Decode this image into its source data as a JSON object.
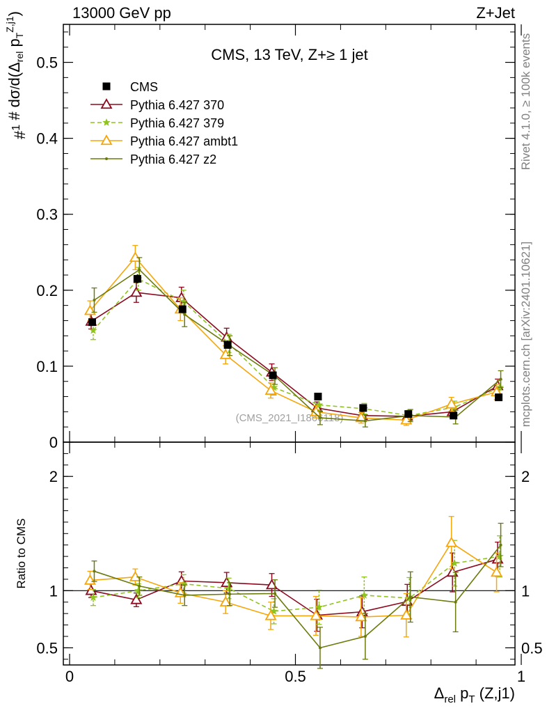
{
  "header": {
    "left": "13000 GeV pp",
    "right": "Z+Jet"
  },
  "side_labels": {
    "rivet": "Rivet 4.1.0, ≥ 100k events",
    "mcplots": "mcplots.cern.ch [arXiv:2401.10621]"
  },
  "watermark": "(CMS_2021_I1866118)",
  "chart_data": {
    "type": "line",
    "title": "CMS, 13 TeV, Z+≥ 1 jet",
    "ylabel_top": "#1/σ # dσ/d(Δrel pT(Z,j1))",
    "ylabel_bottom": "Ratio to CMS",
    "xlabel": "Δrel pT (Z,j1)",
    "xlim": [
      0,
      1
    ],
    "ylim_main": [
      0,
      0.55
    ],
    "ylim_ratio": [
      0.35,
      2.3
    ],
    "x_ticks": [
      "0",
      "0.5",
      "1"
    ],
    "y_ticks_main": [
      "0",
      "0.1",
      "0.2",
      "0.3",
      "0.4",
      "0.5"
    ],
    "y_ticks_ratio": [
      "0.5",
      "1",
      "2"
    ],
    "x": [
      0.05,
      0.15,
      0.25,
      0.35,
      0.45,
      0.55,
      0.65,
      0.75,
      0.85,
      0.95
    ],
    "cms": {
      "name": "CMS",
      "values": [
        0.158,
        0.215,
        0.175,
        0.128,
        0.088,
        0.06,
        0.045,
        0.037,
        0.035,
        0.059
      ],
      "errors": [
        0.005,
        0.006,
        0.005,
        0.004,
        0.003,
        0.002,
        0.002,
        0.002,
        0.002,
        0.003
      ]
    },
    "series": [
      {
        "name": "Pythia 6.427 370",
        "color": "#8b0a1f",
        "marker": "open-triangle",
        "dash": "",
        "values": [
          0.159,
          0.197,
          0.19,
          0.138,
          0.092,
          0.045,
          0.035,
          0.034,
          0.04,
          0.074
        ],
        "errors": [
          0.01,
          0.013,
          0.014,
          0.012,
          0.011,
          0.008,
          0.007,
          0.007,
          0.007,
          0.009
        ],
        "ratio": [
          1.0,
          0.92,
          1.085,
          1.07,
          1.05,
          0.785,
          0.815,
          0.905,
          1.16,
          1.275
        ],
        "ratio_err": [
          0.06,
          0.06,
          0.08,
          0.09,
          0.1,
          0.14,
          0.14,
          0.15,
          0.17,
          0.15
        ]
      },
      {
        "name": "Pythia 6.427 379",
        "color": "#8fc31f",
        "marker": "star",
        "dash": "6,4",
        "values": [
          0.147,
          0.215,
          0.185,
          0.13,
          0.072,
          0.049,
          0.044,
          0.035,
          0.046,
          0.072
        ],
        "errors": [
          0.012,
          0.015,
          0.015,
          0.012,
          0.01,
          0.008,
          0.007,
          0.007,
          0.008,
          0.01
        ],
        "ratio": [
          0.94,
          1.0,
          1.06,
          1.02,
          0.82,
          0.855,
          0.96,
          0.935,
          1.24,
          1.3
        ],
        "ratio_err": [
          0.07,
          0.06,
          0.08,
          0.09,
          0.11,
          0.15,
          0.16,
          0.18,
          0.2,
          0.18
        ]
      },
      {
        "name": "Pythia 6.427 ambt1",
        "color": "#f5a60b",
        "marker": "open-triangle",
        "dash": "",
        "values": [
          0.173,
          0.243,
          0.175,
          0.115,
          0.068,
          0.04,
          0.032,
          0.029,
          0.05,
          0.066
        ],
        "errors": [
          0.013,
          0.016,
          0.015,
          0.012,
          0.01,
          0.008,
          0.007,
          0.007,
          0.009,
          0.01
        ],
        "ratio": [
          1.09,
          1.12,
          0.98,
          0.9,
          0.78,
          0.78,
          0.77,
          0.785,
          1.42,
          1.16
        ],
        "ratio_err": [
          0.08,
          0.07,
          0.09,
          0.1,
          0.12,
          0.17,
          0.17,
          0.19,
          0.23,
          0.17
        ]
      },
      {
        "name": "Pythia 6.427 z2",
        "color": "#6b7a0b",
        "marker": "dot",
        "dash": "",
        "values": [
          0.187,
          0.227,
          0.168,
          0.127,
          0.087,
          0.032,
          0.028,
          0.035,
          0.033,
          0.083
        ],
        "errors": [
          0.016,
          0.016,
          0.016,
          0.013,
          0.011,
          0.009,
          0.008,
          0.008,
          0.009,
          0.011
        ],
        "ratio": [
          1.17,
          1.04,
          0.96,
          0.97,
          0.975,
          0.5,
          0.6,
          0.945,
          0.9,
          1.4
        ],
        "ratio_err": [
          0.09,
          0.08,
          0.09,
          0.1,
          0.12,
          0.18,
          0.2,
          0.22,
          0.26,
          0.19
        ]
      }
    ]
  }
}
